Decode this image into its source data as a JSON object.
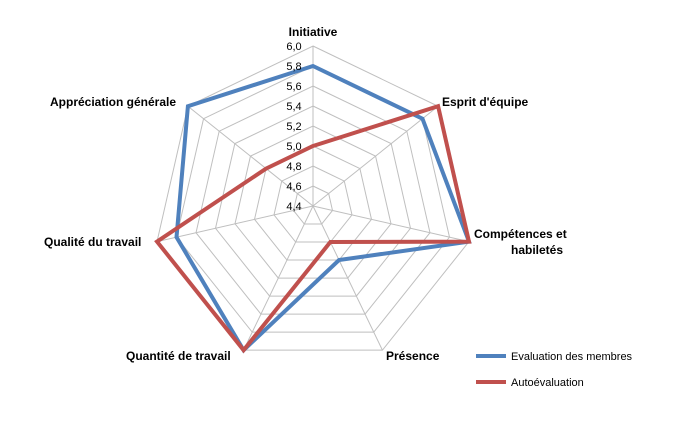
{
  "chart_data": {
    "type": "radar",
    "categories": [
      "Initiative",
      "Esprit d'équipe",
      "Compétences et habiletés",
      "Présence",
      "Quantité de travail",
      "Qualité du travail",
      "Appréciation générale"
    ],
    "series": [
      {
        "name": "Evaluation des membres",
        "values": [
          5.8,
          5.8,
          6.0,
          5.0,
          6.0,
          5.8,
          6.0
        ],
        "color": "#4f81bd"
      },
      {
        "name": "Autoévaluation",
        "values": [
          5.0,
          6.0,
          6.0,
          4.8,
          6.0,
          6.0,
          5.0
        ],
        "color": "#c0504d"
      }
    ],
    "rlim": [
      4.4,
      6.0
    ],
    "ticks": [
      "4,4",
      "4,6",
      "4,8",
      "5,0",
      "5,2",
      "5,4",
      "5,6",
      "5,8",
      "6,0"
    ],
    "grid": true,
    "legend_position": "bottom-right"
  }
}
